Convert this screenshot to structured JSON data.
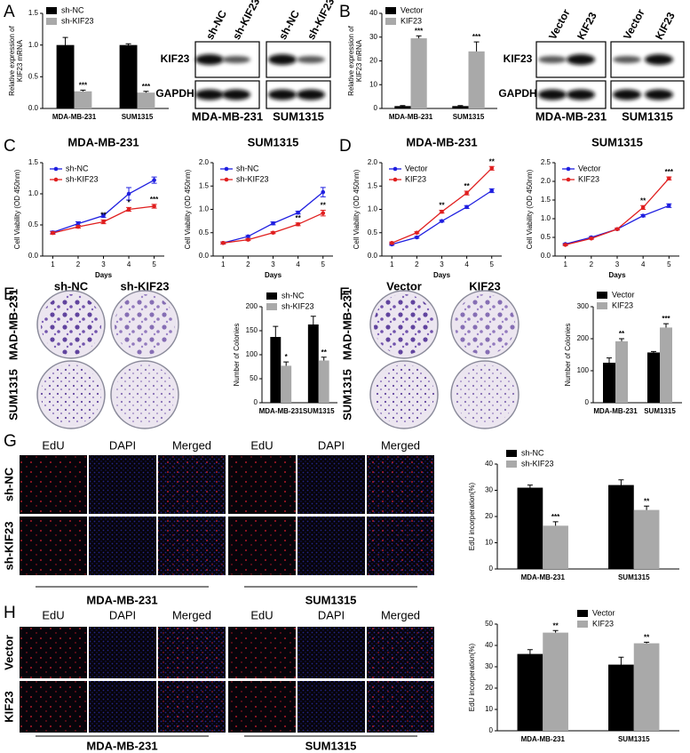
{
  "chart_data": [
    {
      "type": "bar",
      "ylabel": [
        "Relative expression of",
        "KIF23  mRNA"
      ],
      "categories": [
        "MDA-MB-231",
        "SUM1315"
      ],
      "series": [
        {
          "name": "sh-NC",
          "color": "#000000",
          "values": [
            1.0,
            1.0
          ],
          "errors": [
            0.12,
            0.02
          ],
          "sig": [
            null,
            null
          ]
        },
        {
          "name": "sh-KIF23",
          "color": "#a9a9a9",
          "values": [
            0.27,
            0.25
          ],
          "errors": [
            0.02,
            0.02
          ],
          "sig": [
            "***",
            "***"
          ]
        }
      ],
      "ylim": [
        0,
        1.5
      ],
      "yticks": [
        {
          "value": 0,
          "label": "0.0"
        },
        0.5,
        {
          "value": 1,
          "label": "1.0"
        },
        1.5
      ]
    },
    {
      "type": "bar",
      "ylabel": [
        "Relative expression of",
        "KIF23 mRNA"
      ],
      "categories": [
        "MDA-MB-231",
        "SUM1315"
      ],
      "series": [
        {
          "name": "Vector",
          "color": "#000000",
          "values": [
            1,
            1
          ],
          "errors": [
            0.2,
            0.2
          ],
          "sig": [
            null,
            null
          ]
        },
        {
          "name": "KIF23",
          "color": "#a9a9a9",
          "values": [
            29.5,
            24
          ],
          "errors": [
            1,
            4
          ],
          "sig": [
            "***",
            "***"
          ]
        }
      ],
      "ylim": [
        0,
        40
      ],
      "yticks": [
        0,
        10,
        20,
        30,
        40
      ]
    },
    {
      "type": "line",
      "title": "MDA-MB-231",
      "xlabel": "Days",
      "ylabel": "Cell Viability (OD 450nm)",
      "x": [
        1,
        2,
        3,
        4,
        5
      ],
      "series": [
        {
          "name": "sh-NC",
          "color": "#1f1fe0",
          "values": [
            0.38,
            0.52,
            0.65,
            1.0,
            1.22
          ],
          "errors": [
            0.02,
            0.03,
            0.03,
            0.1,
            0.05
          ],
          "sig": [
            null,
            null,
            null,
            null,
            null
          ]
        },
        {
          "name": "sh-KIF23",
          "color": "#e01f1f",
          "values": [
            0.37,
            0.47,
            0.55,
            0.75,
            0.8
          ],
          "errors": [
            0.02,
            0.02,
            0.03,
            0.03,
            0.03
          ],
          "sig": [
            null,
            null,
            "**",
            "*",
            "***"
          ]
        }
      ],
      "xlim": [
        0.6,
        5.4
      ],
      "xticks": [
        1,
        2,
        3,
        4,
        5
      ],
      "ylim": [
        0,
        1.5
      ],
      "yticks": [
        {
          "value": 0,
          "label": "0.0"
        },
        0.5,
        {
          "value": 1,
          "label": "1.0"
        },
        1.5
      ]
    },
    {
      "type": "line",
      "title": "SUM1315",
      "xlabel": "Days",
      "ylabel": "Cell Viability (OD 450nm)",
      "x": [
        1,
        2,
        3,
        4,
        5
      ],
      "series": [
        {
          "name": "sh-NC",
          "color": "#1f1fe0",
          "values": [
            0.28,
            0.42,
            0.7,
            0.93,
            1.37
          ],
          "errors": [
            0.02,
            0.02,
            0.03,
            0.03,
            0.1
          ],
          "sig": [
            null,
            null,
            null,
            null,
            null
          ]
        },
        {
          "name": "sh-KIF23",
          "color": "#e01f1f",
          "values": [
            0.28,
            0.35,
            0.5,
            0.68,
            0.92
          ],
          "errors": [
            0.02,
            0.02,
            0.02,
            0.03,
            0.06
          ],
          "sig": [
            null,
            null,
            null,
            "**",
            "**"
          ]
        }
      ],
      "xlim": [
        0.6,
        5.4
      ],
      "xticks": [
        1,
        2,
        3,
        4,
        5
      ],
      "ylim": [
        0,
        2
      ],
      "yticks": [
        {
          "value": 0,
          "label": "0.0"
        },
        0.5,
        {
          "value": 1,
          "label": "1.0"
        },
        1.5,
        {
          "value": 2,
          "label": "2.0"
        }
      ]
    },
    {
      "type": "line",
      "title": "MDA-MB-231",
      "xlabel": "Days",
      "ylabel": "Cell Viability (OD 450nm)",
      "x": [
        1,
        2,
        3,
        4,
        5
      ],
      "series": [
        {
          "name": "Vector",
          "color": "#1f1fe0",
          "values": [
            0.25,
            0.4,
            0.75,
            1.05,
            1.4
          ],
          "errors": [
            0.02,
            0.02,
            0.02,
            0.03,
            0.04
          ],
          "sig": [
            null,
            null,
            null,
            null,
            null
          ]
        },
        {
          "name": "KIF23",
          "color": "#e01f1f",
          "values": [
            0.28,
            0.5,
            0.95,
            1.35,
            1.88
          ],
          "errors": [
            0.02,
            0.02,
            0.03,
            0.04,
            0.04
          ],
          "sig": [
            null,
            null,
            "**",
            "**",
            "**"
          ]
        }
      ],
      "xlim": [
        0.6,
        5.4
      ],
      "xticks": [
        1,
        2,
        3,
        4,
        5
      ],
      "ylim": [
        0,
        2
      ],
      "yticks": [
        {
          "value": 0,
          "label": "0.0"
        },
        0.5,
        {
          "value": 1,
          "label": "1.0"
        },
        1.5,
        {
          "value": 2,
          "label": "2.0"
        }
      ]
    },
    {
      "type": "line",
      "title": "SUM1315",
      "xlabel": "Days",
      "ylabel": "Cell Viability (OD 450nm)",
      "x": [
        1,
        2,
        3,
        4,
        5
      ],
      "series": [
        {
          "name": "Vector",
          "color": "#1f1fe0",
          "values": [
            0.32,
            0.5,
            0.72,
            1.08,
            1.35
          ],
          "errors": [
            0.02,
            0.02,
            0.02,
            0.03,
            0.05
          ],
          "sig": [
            null,
            null,
            null,
            null,
            null
          ]
        },
        {
          "name": "KIF23",
          "color": "#e01f1f",
          "values": [
            0.3,
            0.47,
            0.72,
            1.3,
            2.08
          ],
          "errors": [
            0.02,
            0.02,
            0.02,
            0.05,
            0.04
          ],
          "sig": [
            null,
            null,
            null,
            "**",
            "***"
          ]
        }
      ],
      "xlim": [
        0.6,
        5.4
      ],
      "xticks": [
        1,
        2,
        3,
        4,
        5
      ],
      "ylim": [
        0,
        2.5
      ],
      "yticks": [
        {
          "value": 0,
          "label": "0.0"
        },
        0.5,
        {
          "value": 1,
          "label": "1.0"
        },
        1.5,
        {
          "value": 2,
          "label": "2.0"
        },
        2.5
      ]
    },
    {
      "type": "bar",
      "ylabel": "Number of Colonies",
      "categories": [
        "MDA-MB-231",
        "SUM1315"
      ],
      "series": [
        {
          "name": "sh-NC",
          "color": "#000000",
          "values": [
            137,
            163
          ],
          "errors": [
            22,
            17
          ],
          "sig": [
            null,
            null
          ]
        },
        {
          "name": "sh-KIF23",
          "color": "#a9a9a9",
          "values": [
            77,
            88
          ],
          "errors": [
            8,
            7
          ],
          "sig": [
            "*",
            "**"
          ]
        }
      ],
      "ylim": [
        0,
        200
      ],
      "yticks": [
        0,
        50,
        100,
        150,
        200
      ]
    },
    {
      "type": "bar",
      "ylabel": "Number of Colonies",
      "categories": [
        "MDA-MB-231",
        "SUM1315"
      ],
      "series": [
        {
          "name": "Vector",
          "color": "#000000",
          "values": [
            125,
            157
          ],
          "errors": [
            15,
            3
          ],
          "sig": [
            null,
            null
          ]
        },
        {
          "name": "KIF23",
          "color": "#a9a9a9",
          "values": [
            192,
            235
          ],
          "errors": [
            8,
            12
          ],
          "sig": [
            "**",
            "***"
          ]
        }
      ],
      "ylim": [
        0,
        300
      ],
      "yticks": [
        0,
        100,
        200,
        300
      ]
    },
    {
      "type": "bar",
      "ylabel": "EdU incorperation(%)",
      "categories": [
        "MDA-MB-231",
        "SUM1315"
      ],
      "series": [
        {
          "name": "sh-NC",
          "color": "#000000",
          "values": [
            31,
            32
          ],
          "errors": [
            1,
            2
          ],
          "sig": [
            null,
            null
          ]
        },
        {
          "name": "sh-KIF23",
          "color": "#a9a9a9",
          "values": [
            16.5,
            22.5
          ],
          "errors": [
            1.5,
            1.5
          ],
          "sig": [
            "***",
            "**"
          ]
        }
      ],
      "ylim": [
        0,
        40
      ],
      "yticks": [
        0,
        10,
        20,
        30,
        40
      ]
    },
    {
      "type": "bar",
      "ylabel": "EdU incorperation(%)",
      "categories": [
        "MDA-MB-231",
        "SUM1315"
      ],
      "series": [
        {
          "name": "Vector",
          "color": "#000000",
          "values": [
            36,
            31
          ],
          "errors": [
            2,
            3.5
          ],
          "sig": [
            null,
            null
          ]
        },
        {
          "name": "KIF23",
          "color": "#a9a9a9",
          "values": [
            46,
            41
          ],
          "errors": [
            1,
            0.5
          ],
          "sig": [
            "**",
            "**"
          ]
        }
      ],
      "ylim": [
        0,
        50
      ],
      "yticks": [
        0,
        10,
        20,
        30,
        40,
        50
      ]
    }
  ],
  "panels": {
    "letters": [
      "A",
      "B",
      "C",
      "D",
      "E",
      "F",
      "G",
      "H"
    ],
    "blot_a": {
      "lanes": [
        "sh-NC",
        "sh-KIF23",
        "sh-NC",
        "sh-KIF23"
      ],
      "rows": [
        "KIF23",
        "GAPDH"
      ],
      "cells": [
        "MDA-MB-231",
        "SUM1315"
      ]
    },
    "blot_b": {
      "lanes": [
        "Vector",
        "KIF23",
        "Vector",
        "KIF23"
      ],
      "rows": [
        "KIF23",
        "GAPDH"
      ],
      "cells": [
        "MDA-MB-231",
        "SUM1315"
      ]
    },
    "plates_e": {
      "columns": [
        "sh-NC",
        "sh-KIF23"
      ],
      "rows": [
        "MAD-MB-231",
        "SUM1315"
      ]
    },
    "plates_f": {
      "columns": [
        "Vector",
        "KIF23"
      ],
      "rows": [
        "MAD-MB-231",
        "SUM1315"
      ]
    },
    "edu_g": {
      "columns": [
        "EdU",
        "DAPI",
        "Merged",
        "EdU",
        "DAPI",
        "Merged"
      ],
      "rows": [
        "sh-NC",
        "sh-KIF23"
      ],
      "cells": [
        "MDA-MB-231",
        "SUM1315"
      ]
    },
    "edu_h": {
      "columns": [
        "EdU",
        "DAPI",
        "Merged",
        "EdU",
        "DAPI",
        "Merged"
      ],
      "rows": [
        "Vector",
        "KIF23"
      ],
      "cells": [
        "MDA-MB-231",
        "SUM1315"
      ]
    }
  }
}
